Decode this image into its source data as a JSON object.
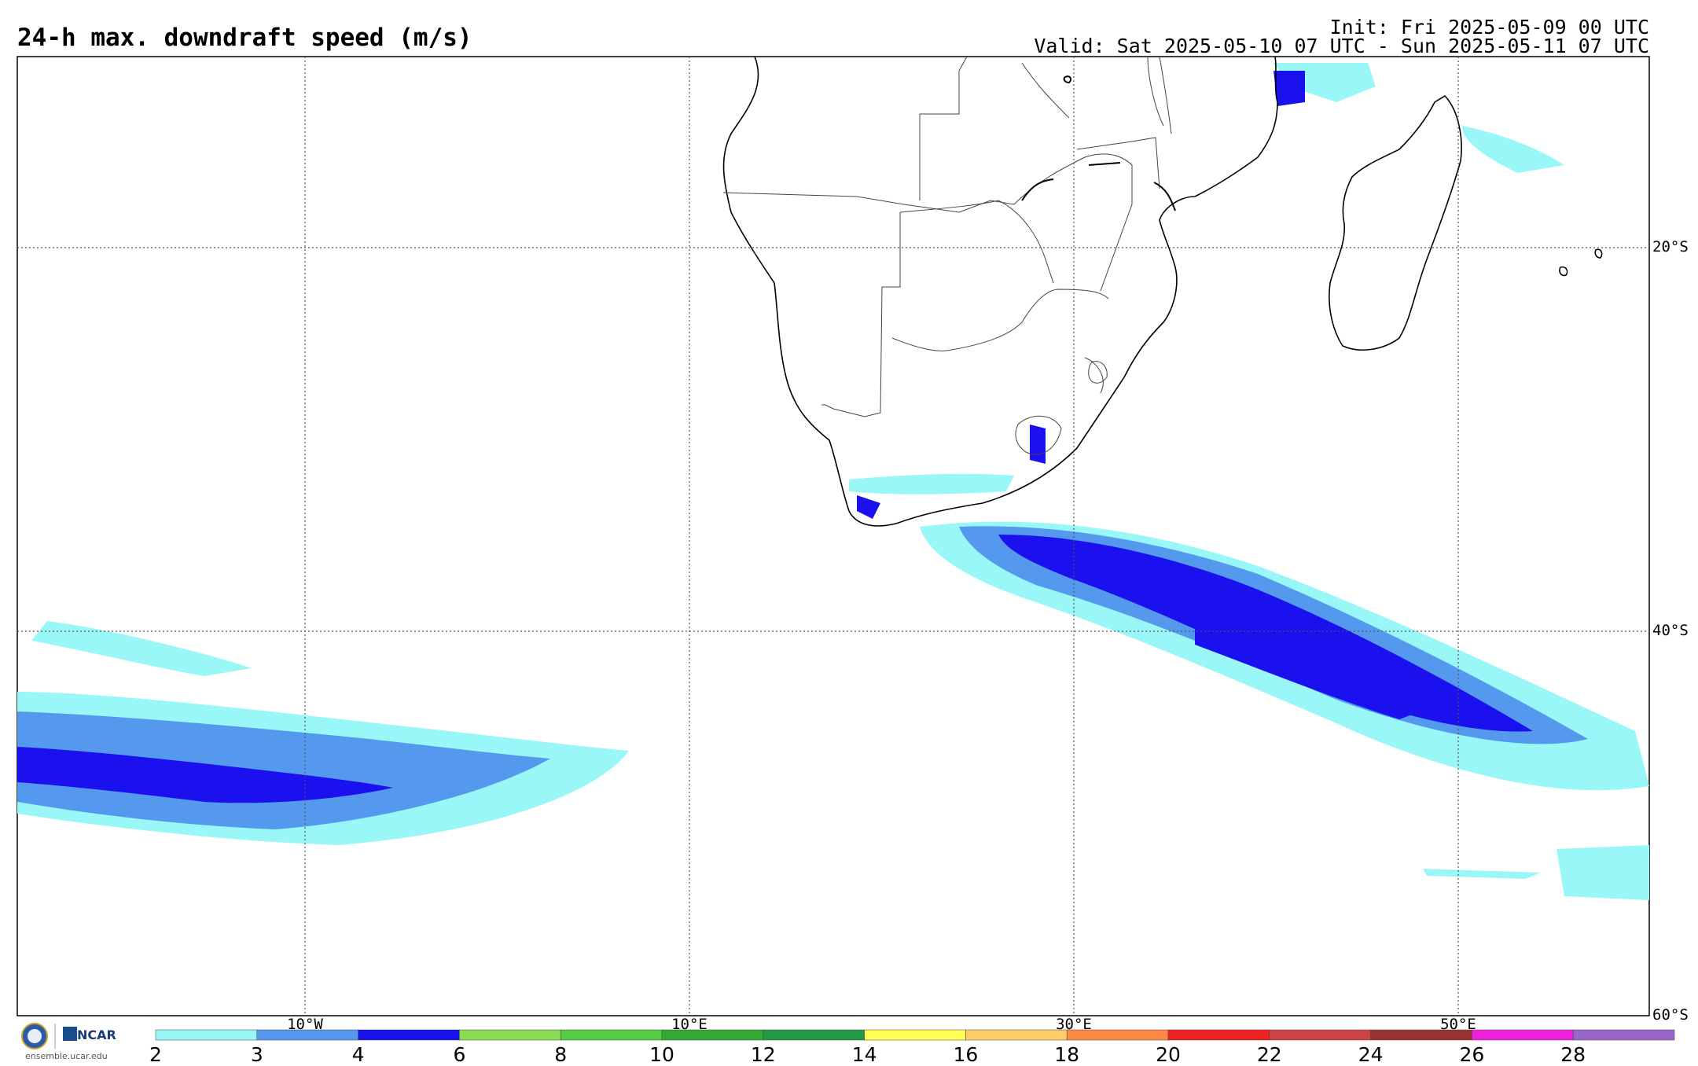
{
  "header": {
    "title": "24-h max. downdraft speed (m/s)",
    "init": "Init: Fri 2025-05-09 00 UTC",
    "valid": "Valid: Sat 2025-05-10 07 UTC - Sun 2025-05-11 07 UTC"
  },
  "map": {
    "lat_labels": [
      "20°S",
      "40°S",
      "60°S"
    ],
    "lon_labels": [
      "10°W",
      "10°E",
      "30°E",
      "50°E"
    ],
    "grid": "dotted",
    "region": "Southern Africa and South Atlantic / Indian Ocean"
  },
  "colorbar": {
    "ticks": [
      "2",
      "3",
      "4",
      "6",
      "8",
      "10",
      "12",
      "14",
      "16",
      "18",
      "20",
      "22",
      "24",
      "26",
      "28"
    ],
    "colors": [
      "#99f7f7",
      "#5599ee",
      "#1a11ee",
      "#88dd55",
      "#55cc44",
      "#33aa33",
      "#229944",
      "#ffff55",
      "#ffcc66",
      "#ff8844",
      "#ee2222",
      "#cc4444",
      "#993333",
      "#ee22dd",
      "#9966cc"
    ]
  },
  "logos": {
    "ncar": "NCAR",
    "nsf": "NSF",
    "url": "ensemble.ucar.edu",
    "nsf_icon": "nsf-seal-icon",
    "ncar_icon": "ncar-logo-icon"
  }
}
